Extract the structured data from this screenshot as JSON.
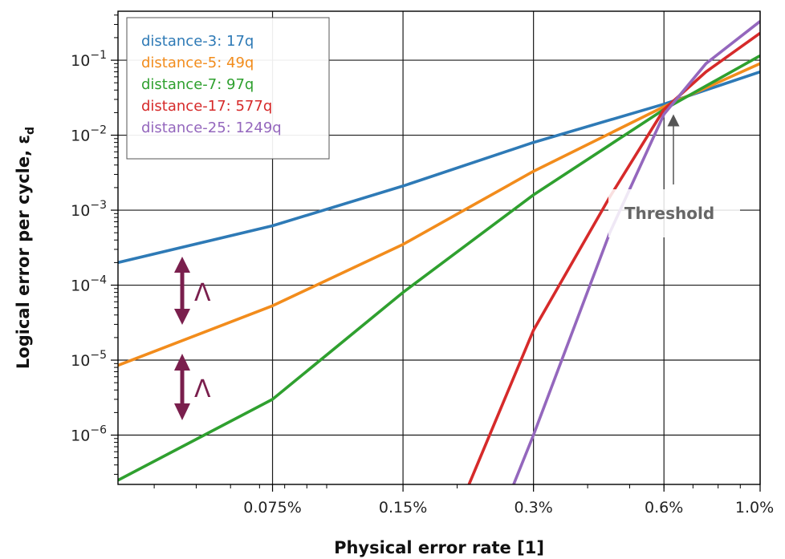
{
  "chart_data": {
    "type": "line",
    "xlabel": "Physical error rate [1]",
    "ylabel": "Logical error per cycle, ε",
    "ylabel_subscript": "d",
    "x_scale": "log",
    "y_scale": "log",
    "xlim": [
      0.00033,
      0.01
    ],
    "ylim": [
      2.2e-07,
      0.45
    ],
    "grid": true,
    "legend_position": "top-left",
    "x_ticks": [
      {
        "value": 0.00075,
        "label": "0.075%"
      },
      {
        "value": 0.0015,
        "label": "0.15%"
      },
      {
        "value": 0.003,
        "label": "0.3%"
      },
      {
        "value": 0.006,
        "label": "0.6%"
      },
      {
        "value": 0.01,
        "label": "1.0%"
      }
    ],
    "y_ticks": [
      {
        "value": 0.1,
        "base": "10",
        "exp": "−1"
      },
      {
        "value": 0.01,
        "base": "10",
        "exp": "−2"
      },
      {
        "value": 0.001,
        "base": "10",
        "exp": "−3"
      },
      {
        "value": 0.0001,
        "base": "10",
        "exp": "−4"
      },
      {
        "value": 1e-05,
        "base": "10",
        "exp": "−5"
      },
      {
        "value": 1e-06,
        "base": "10",
        "exp": "−6"
      }
    ],
    "series": [
      {
        "name": "distance-3: 17q",
        "color": "#2e7ab6",
        "points": [
          [
            0.00033,
            0.0002
          ],
          [
            0.00075,
            0.00062
          ],
          [
            0.0015,
            0.0021
          ],
          [
            0.003,
            0.008
          ],
          [
            0.006,
            0.026
          ],
          [
            0.01,
            0.07
          ]
        ]
      },
      {
        "name": "distance-5: 49q",
        "color": "#f28c1c",
        "points": [
          [
            0.00033,
            8.5e-06
          ],
          [
            0.00075,
            5.3e-05
          ],
          [
            0.0015,
            0.00035
          ],
          [
            0.003,
            0.0033
          ],
          [
            0.006,
            0.024
          ],
          [
            0.01,
            0.09
          ]
        ]
      },
      {
        "name": "distance-7: 97q",
        "color": "#2fa02f",
        "points": [
          [
            0.00033,
            2.5e-07
          ],
          [
            0.00075,
            3e-06
          ],
          [
            0.0015,
            8e-05
          ],
          [
            0.003,
            0.0016
          ],
          [
            0.006,
            0.022
          ],
          [
            0.01,
            0.115
          ]
        ]
      },
      {
        "name": "distance-17: 577q",
        "color": "#d62a2a",
        "points": [
          [
            0.00213,
            2.2e-07
          ],
          [
            0.003,
            2.5e-05
          ],
          [
            0.0045,
            0.0015
          ],
          [
            0.006,
            0.022
          ],
          [
            0.0075,
            0.07
          ],
          [
            0.01,
            0.23
          ]
        ]
      },
      {
        "name": "distance-25: 1249q",
        "color": "#9467bd",
        "points": [
          [
            0.0027,
            2.2e-07
          ],
          [
            0.003,
            1e-06
          ],
          [
            0.0045,
            0.0005
          ],
          [
            0.006,
            0.019
          ],
          [
            0.0075,
            0.09
          ],
          [
            0.01,
            0.33
          ]
        ]
      }
    ],
    "annotations": [
      {
        "text": "Threshold"
      },
      {
        "text": "Λ"
      },
      {
        "text": "Λ"
      }
    ]
  },
  "colors": {
    "lambda_arrow": "#7a1f4d",
    "threshold_arrow": "#555555"
  }
}
